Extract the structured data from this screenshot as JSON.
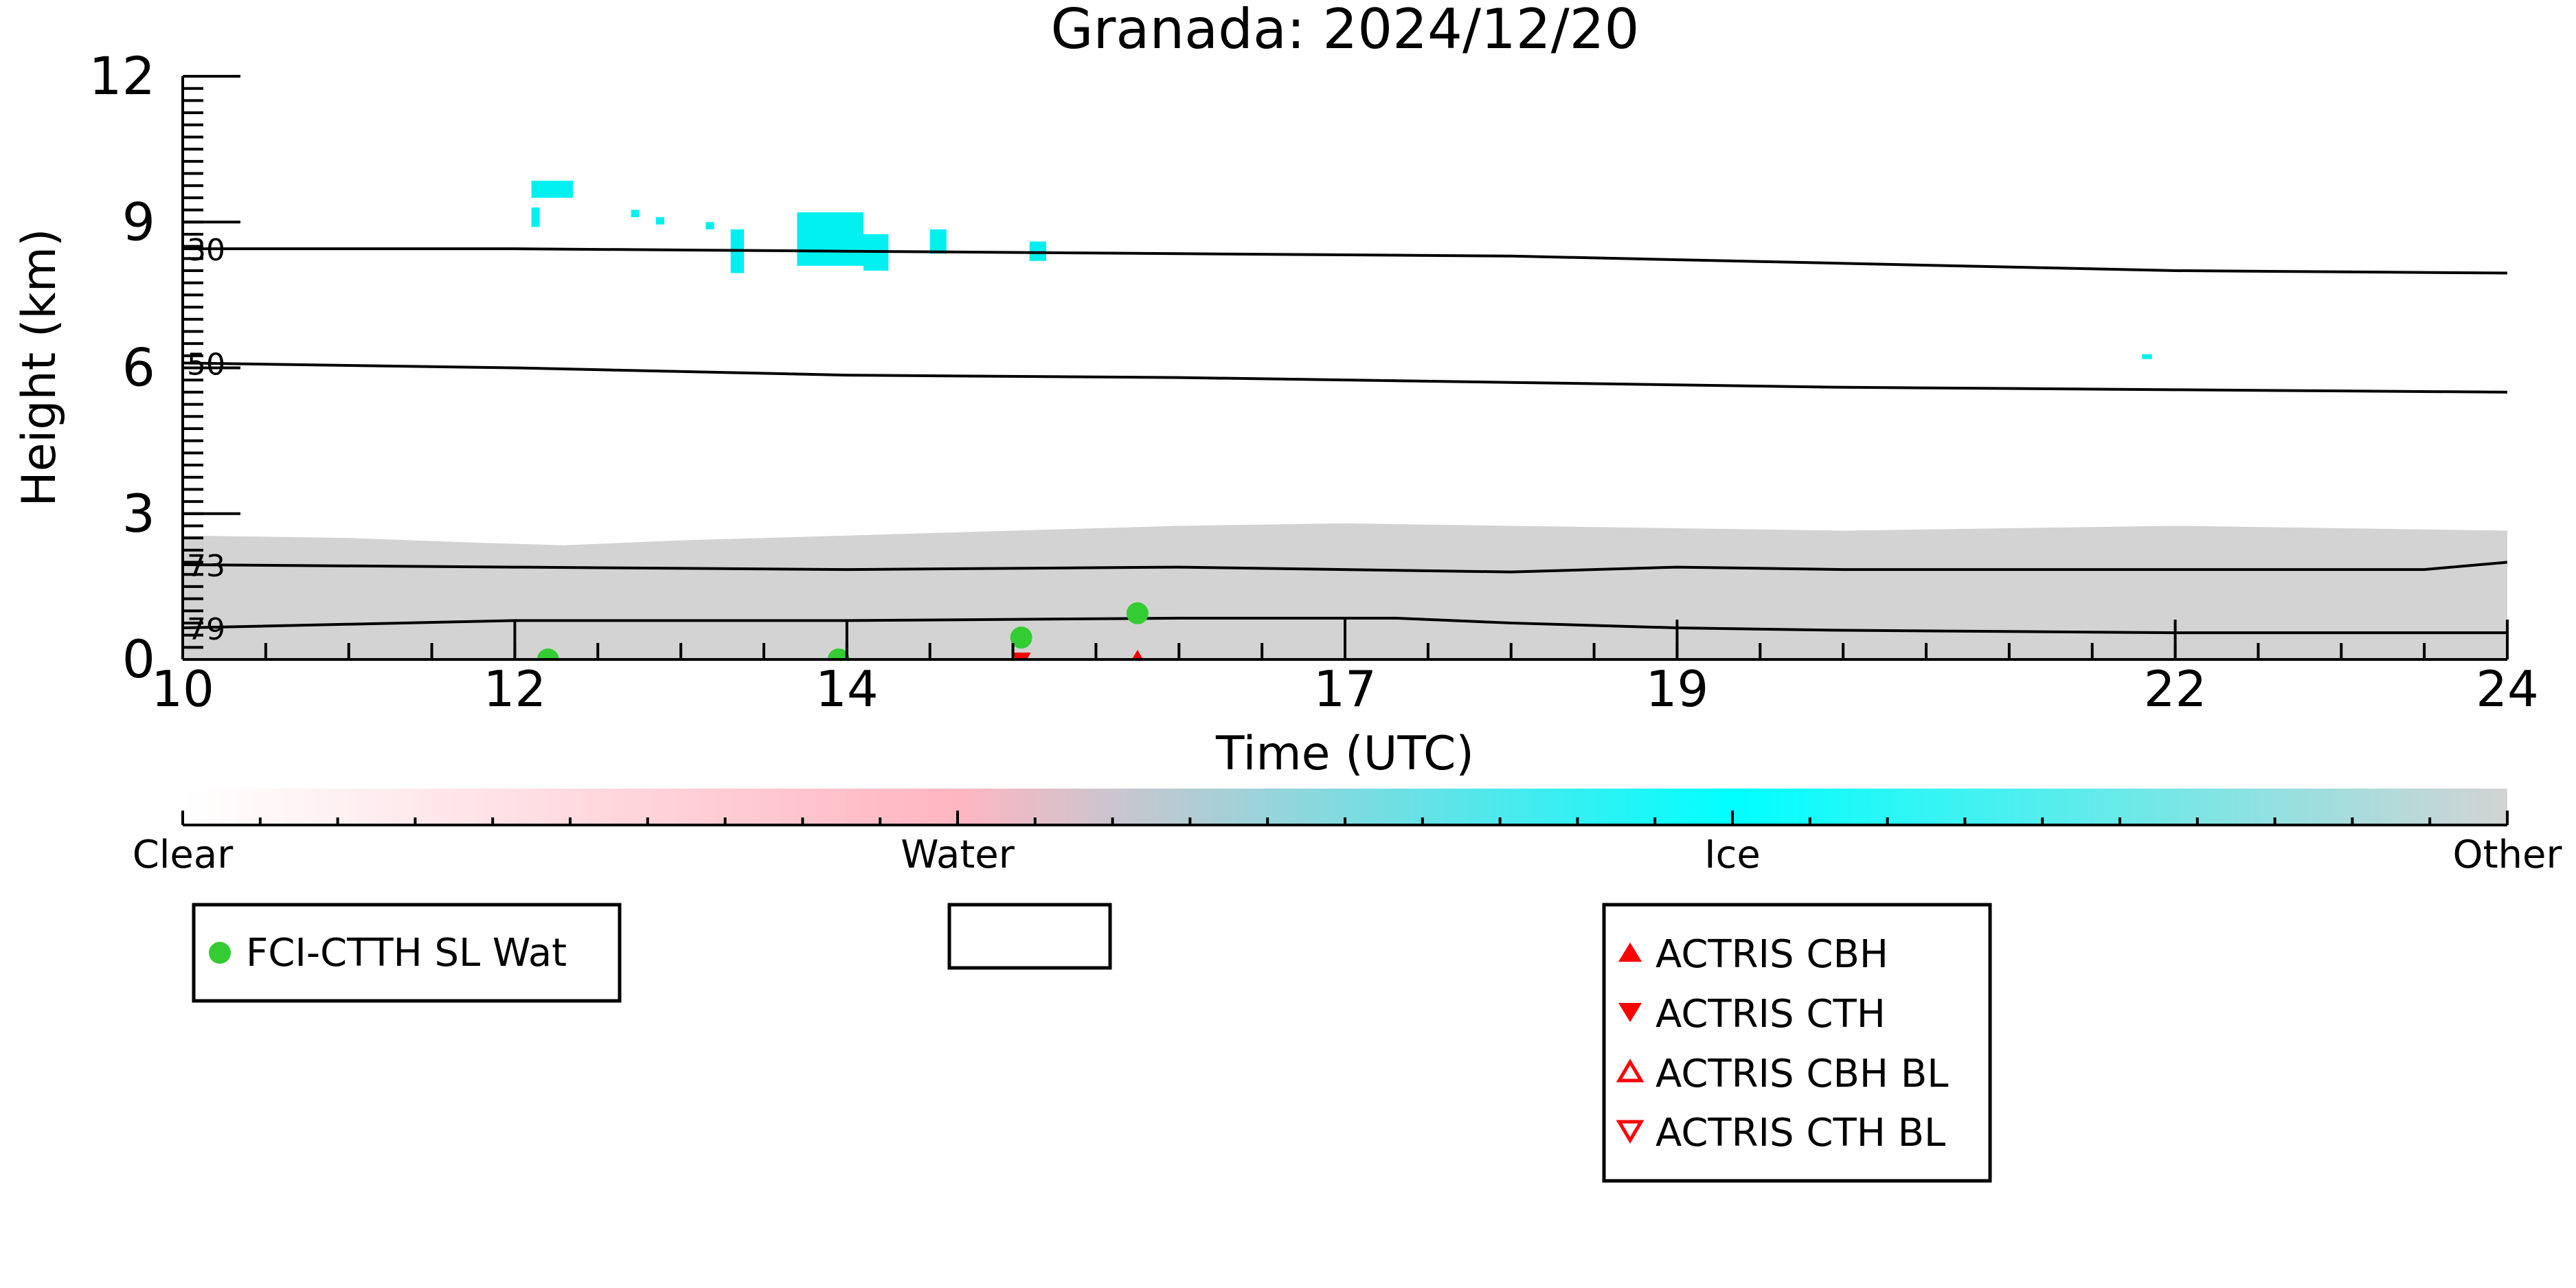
{
  "chart_data": {
    "type": "scatter",
    "title": "Granada: 2024/12/20",
    "xlabel": "Time (UTC)",
    "ylabel": "Height (km)",
    "xlim": [
      10,
      24
    ],
    "ylim": [
      0,
      12
    ],
    "xtick_labels": [
      {
        "value": 10,
        "label": "10"
      },
      {
        "value": 12,
        "label": "12"
      },
      {
        "value": 14,
        "label": "14"
      },
      {
        "value": 17,
        "label": "17"
      },
      {
        "value": 19,
        "label": "19"
      },
      {
        "value": 22,
        "label": "22"
      },
      {
        "value": 24,
        "label": "24"
      }
    ],
    "xticks_minor_step": 0.5,
    "yticks": [
      0,
      3,
      6,
      9,
      12
    ],
    "yticks_minor_step": 0.25,
    "grid": false,
    "colors": {
      "clear": "#ffffff",
      "water": "#ffb6c1",
      "ice": "#00ffff",
      "other": "#d3d3d3",
      "ice_cloud": "#00f0f0",
      "fci_marker": "#33cc33",
      "actris_marker": "#ff0000",
      "contour": "#000000"
    },
    "background_layer": {
      "class": "Other",
      "top_km": [
        [
          10,
          2.55
        ],
        [
          11,
          2.5
        ],
        [
          11.8,
          2.4
        ],
        [
          12.3,
          2.35
        ],
        [
          13,
          2.45
        ],
        [
          14,
          2.55
        ],
        [
          15,
          2.65
        ],
        [
          16,
          2.75
        ],
        [
          17,
          2.8
        ],
        [
          18,
          2.75
        ],
        [
          19,
          2.7
        ],
        [
          20,
          2.65
        ],
        [
          21,
          2.7
        ],
        [
          22,
          2.75
        ],
        [
          23,
          2.7
        ],
        [
          24,
          2.65
        ]
      ]
    },
    "ice_clouds": [
      {
        "x0": 12.1,
        "x1": 12.35,
        "y0": 9.5,
        "y1": 9.85
      },
      {
        "x0": 12.1,
        "x1": 12.15,
        "y0": 8.9,
        "y1": 9.3
      },
      {
        "x0": 12.7,
        "x1": 12.75,
        "y0": 9.1,
        "y1": 9.25
      },
      {
        "x0": 12.85,
        "x1": 12.9,
        "y0": 8.95,
        "y1": 9.1
      },
      {
        "x0": 13.15,
        "x1": 13.2,
        "y0": 8.85,
        "y1": 9.0
      },
      {
        "x0": 13.3,
        "x1": 13.38,
        "y0": 7.95,
        "y1": 8.85
      },
      {
        "x0": 13.7,
        "x1": 14.1,
        "y0": 8.1,
        "y1": 9.2
      },
      {
        "x0": 14.1,
        "x1": 14.25,
        "y0": 8.0,
        "y1": 8.75
      },
      {
        "x0": 14.5,
        "x1": 14.6,
        "y0": 8.35,
        "y1": 8.85
      },
      {
        "x0": 15.1,
        "x1": 15.2,
        "y0": 8.2,
        "y1": 8.6
      },
      {
        "x0": 21.8,
        "x1": 21.86,
        "y0": 6.18,
        "y1": 6.28
      }
    ],
    "contours": [
      {
        "label": "30",
        "points": [
          [
            10,
            8.45
          ],
          [
            12,
            8.45
          ],
          [
            14,
            8.4
          ],
          [
            16,
            8.35
          ],
          [
            18,
            8.3
          ],
          [
            20,
            8.15
          ],
          [
            22,
            8.0
          ],
          [
            24,
            7.95
          ]
        ]
      },
      {
        "label": "50",
        "points": [
          [
            10,
            6.1
          ],
          [
            12,
            6.0
          ],
          [
            14,
            5.85
          ],
          [
            16,
            5.8
          ],
          [
            18,
            5.7
          ],
          [
            20,
            5.6
          ],
          [
            22,
            5.55
          ],
          [
            24,
            5.5
          ]
        ]
      },
      {
        "label": "73",
        "points": [
          [
            10,
            1.95
          ],
          [
            12,
            1.9
          ],
          [
            14,
            1.85
          ],
          [
            16,
            1.9
          ],
          [
            18,
            1.8
          ],
          [
            19,
            1.9
          ],
          [
            20,
            1.85
          ],
          [
            22,
            1.85
          ],
          [
            23.5,
            1.85
          ],
          [
            24,
            2.0
          ]
        ]
      },
      {
        "label": "79",
        "points": [
          [
            10,
            0.65
          ],
          [
            12,
            0.8
          ],
          [
            14,
            0.8
          ],
          [
            16,
            0.85
          ],
          [
            17.3,
            0.85
          ],
          [
            18,
            0.75
          ],
          [
            19,
            0.65
          ],
          [
            20,
            0.6
          ],
          [
            22,
            0.55
          ],
          [
            24,
            0.55
          ]
        ]
      }
    ],
    "series": [
      {
        "name": "FCI-CTTH SL Wat",
        "marker": "circle-filled",
        "color": "#33cc33",
        "points": [
          [
            12.2,
            0.0
          ],
          [
            13.95,
            0.0
          ],
          [
            15.05,
            0.45
          ],
          [
            15.75,
            0.95
          ]
        ]
      },
      {
        "name": "ACTRIS CBH",
        "marker": "triangle-up-filled",
        "color": "#ff0000",
        "points": [
          [
            15.75,
            0.0
          ]
        ]
      },
      {
        "name": "ACTRIS CTH",
        "marker": "triangle-down-filled",
        "color": "#ff0000",
        "points": [
          [
            15.05,
            0.0
          ]
        ]
      },
      {
        "name": "ACTRIS CBH BL",
        "marker": "triangle-up-open",
        "color": "#ff0000",
        "points": []
      },
      {
        "name": "ACTRIS CTH BL",
        "marker": "triangle-down-open",
        "color": "#ff0000",
        "points": []
      }
    ],
    "colorbar": {
      "labels": [
        "Clear",
        "Water",
        "Ice",
        "Other"
      ],
      "stops": [
        "#ffffff",
        "#ffb6c1",
        "#00ffff",
        "#d3d3d3"
      ],
      "minor_ticks": 30
    },
    "legends": [
      {
        "position": "bottom-left",
        "entries": [
          "FCI-CTTH SL Wat"
        ]
      },
      {
        "position": "bottom-center",
        "entries": []
      },
      {
        "position": "bottom-right",
        "entries": [
          "ACTRIS CBH",
          "ACTRIS CTH",
          "ACTRIS CBH BL",
          "ACTRIS CTH BL"
        ]
      }
    ]
  }
}
